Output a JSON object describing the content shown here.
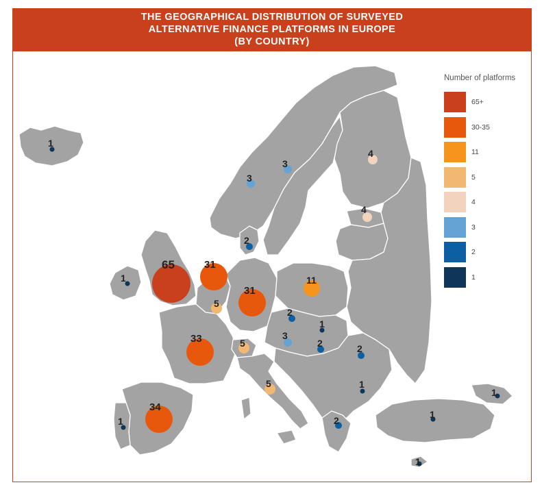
{
  "title": {
    "lines": [
      "THE GEOGRAPHICAL DISTRIBUTION OF SURVEYED",
      "ALTERNATIVE FINANCE PLATFORMS IN EUROPE",
      "(BY COUNTRY)"
    ]
  },
  "legend": {
    "title": "Number of platforms",
    "items": [
      {
        "label": "65+",
        "color": "#c8401c"
      },
      {
        "label": "30-35",
        "color": "#e8580c"
      },
      {
        "label": "11",
        "color": "#f6951d"
      },
      {
        "label": "5",
        "color": "#f0b872"
      },
      {
        "label": "4",
        "color": "#f2d4be"
      },
      {
        "label": "3",
        "color": "#64a3d3"
      },
      {
        "label": "2",
        "color": "#0c5fa3"
      },
      {
        "label": "1",
        "color": "#0f3558"
      }
    ]
  },
  "markers": [
    {
      "country": "Iceland",
      "count": 1
    },
    {
      "country": "Ireland",
      "count": 1
    },
    {
      "country": "United Kingdom",
      "count": 65
    },
    {
      "country": "Netherlands",
      "count": 31
    },
    {
      "country": "Belgium",
      "count": 5
    },
    {
      "country": "Germany",
      "count": 31
    },
    {
      "country": "France",
      "count": 33
    },
    {
      "country": "Switzerland",
      "count": 5
    },
    {
      "country": "Italy",
      "count": 5
    },
    {
      "country": "Spain",
      "count": 34
    },
    {
      "country": "Portugal",
      "count": 1
    },
    {
      "country": "Norway",
      "count": 3
    },
    {
      "country": "Sweden",
      "count": 3
    },
    {
      "country": "Finland",
      "count": 4
    },
    {
      "country": "Estonia",
      "count": 4
    },
    {
      "country": "Denmark",
      "count": 2
    },
    {
      "country": "Poland",
      "count": 11
    },
    {
      "country": "Czech Republic",
      "count": 2
    },
    {
      "country": "Slovakia",
      "count": 1
    },
    {
      "country": "Austria",
      "count": 3
    },
    {
      "country": "Hungary",
      "count": 2
    },
    {
      "country": "Romania",
      "count": 2
    },
    {
      "country": "Bulgaria",
      "count": 1
    },
    {
      "country": "Greece",
      "count": 2
    },
    {
      "country": "Turkey",
      "count": 1
    },
    {
      "country": "Georgia",
      "count": 1
    },
    {
      "country": "Cyprus",
      "count": 1
    }
  ]
}
